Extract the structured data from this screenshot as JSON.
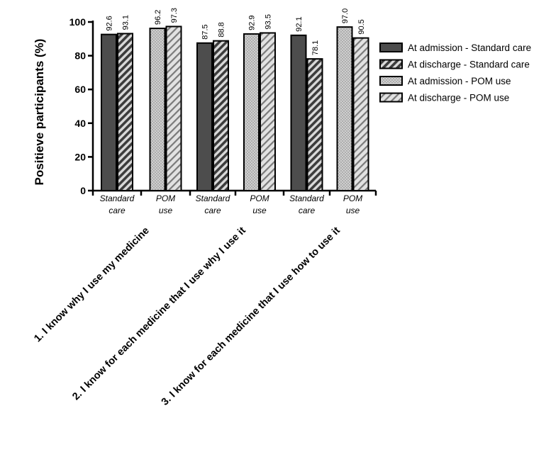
{
  "chart_data": {
    "type": "bar",
    "title": "",
    "ylabel": "Positieve participants (%)",
    "xlabel": "",
    "ylim": [
      0,
      100
    ],
    "yticks": [
      0,
      20,
      40,
      60,
      80,
      100
    ],
    "grid": false,
    "legend_position": "right",
    "groups": [
      {
        "label": "Standard care"
      },
      {
        "label": "POM use"
      },
      {
        "label": "Standard care"
      },
      {
        "label": "POM use"
      },
      {
        "label": "Standard care"
      },
      {
        "label": "POM use"
      }
    ],
    "questions": [
      "1. I know why I use my medicine",
      "2. I know for each medicine that I use why I use it",
      "3. I know for each medicine that I use how to use it"
    ],
    "series": [
      {
        "name": "At admission - Standard care",
        "pattern": "solid-dark",
        "values": [
          92.6,
          87.5,
          92.1
        ],
        "labels": [
          "92.6",
          "87.5",
          "92.1"
        ]
      },
      {
        "name": "At discharge - Standard care",
        "pattern": "diagonal-dark",
        "values": [
          93.1,
          88.8,
          78.1
        ],
        "labels": [
          "93.1",
          "88.8",
          "78.1"
        ]
      },
      {
        "name": "At admission - POM use",
        "pattern": "dotted-light",
        "values": [
          96.2,
          92.9,
          97.0
        ],
        "labels": [
          "96.2",
          "92.9",
          "97.0"
        ]
      },
      {
        "name": "At discharge - POM use",
        "pattern": "diagonal-light",
        "values": [
          97.3,
          93.5,
          90.5
        ],
        "labels": [
          "97.3",
          "93.5",
          "90.5"
        ]
      }
    ],
    "colors": {
      "dark": "#4d4d4d",
      "light": "#c8c8c8",
      "stroke": "#000000"
    }
  }
}
